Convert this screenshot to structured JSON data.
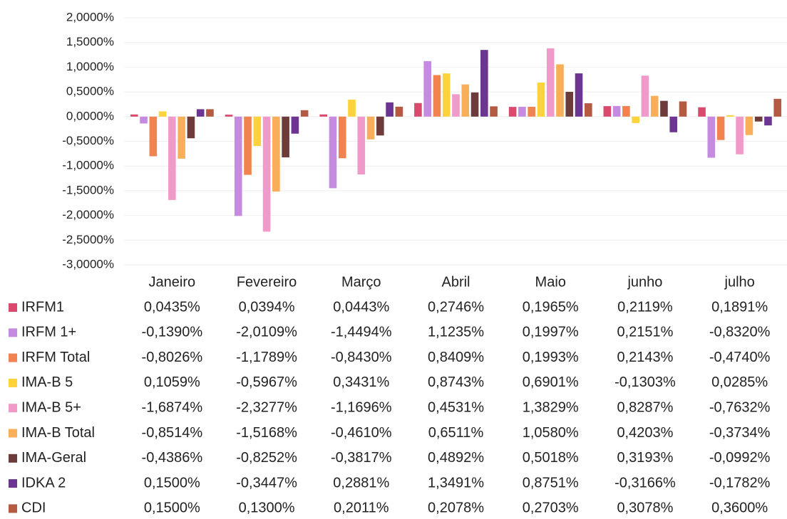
{
  "chart_data": {
    "type": "bar",
    "categories": [
      "Janeiro",
      "Fevereiro",
      "Março",
      "Abril",
      "Maio",
      "junho",
      "julho"
    ],
    "ylim": [
      -3,
      2
    ],
    "yticks": [
      {
        "value": 2,
        "label": "2,0000%"
      },
      {
        "value": 1.5,
        "label": "1,5000%"
      },
      {
        "value": 1,
        "label": "1,0000%"
      },
      {
        "value": 0.5,
        "label": "0,5000%"
      },
      {
        "value": 0,
        "label": "0,0000%"
      },
      {
        "value": -0.5,
        "label": "-0,5000%"
      },
      {
        "value": -1,
        "label": "-1,0000%"
      },
      {
        "value": -1.5,
        "label": "-1,5000%"
      },
      {
        "value": -2,
        "label": "-2,0000%"
      },
      {
        "value": -2.5,
        "label": "-2,5000%"
      },
      {
        "value": -3,
        "label": "-3,0000%"
      }
    ],
    "grid": true,
    "series": [
      {
        "name": "IRFM1",
        "color": "#d94a6e",
        "values": [
          0.0435,
          0.0394,
          0.0443,
          0.2746,
          0.1965,
          0.2119,
          0.1891
        ],
        "value_labels": [
          "0,0435%",
          "0,0394%",
          "0,0443%",
          "0,2746%",
          "0,1965%",
          "0,2119%",
          "0,1891%"
        ]
      },
      {
        "name": "IRFM 1+",
        "color": "#c58be0",
        "values": [
          -0.139,
          -2.0109,
          -1.4494,
          1.1235,
          0.1997,
          0.2151,
          -0.832
        ],
        "value_labels": [
          "-0,1390%",
          "-2,0109%",
          "-1,4494%",
          "1,1235%",
          "0,1997%",
          "0,2151%",
          "-0,8320%"
        ]
      },
      {
        "name": "IRFM Total",
        "color": "#f0834f",
        "values": [
          -0.8026,
          -1.1789,
          -0.843,
          0.8409,
          0.1993,
          0.2143,
          -0.474
        ],
        "value_labels": [
          "-0,8026%",
          "-1,1789%",
          "-0,8430%",
          "0,8409%",
          "0,1993%",
          "0,2143%",
          "-0,4740%"
        ]
      },
      {
        "name": "IMA-B 5",
        "color": "#fdd23a",
        "values": [
          0.1059,
          -0.5967,
          0.3431,
          0.8743,
          0.6901,
          -0.1303,
          0.0285
        ],
        "value_labels": [
          "0,1059%",
          "-0,5967%",
          "0,3431%",
          "0,8743%",
          "0,6901%",
          "-0,1303%",
          "0,0285%"
        ]
      },
      {
        "name": "IMA-B 5+",
        "color": "#f09ac9",
        "values": [
          -1.6874,
          -2.3277,
          -1.1696,
          0.4531,
          1.3829,
          0.8287,
          -0.7632
        ],
        "value_labels": [
          "-1,6874%",
          "-2,3277%",
          "-1,1696%",
          "0,4531%",
          "1,3829%",
          "0,8287%",
          "-0,7632%"
        ]
      },
      {
        "name": "IMA-B Total",
        "color": "#f9ae5a",
        "values": [
          -0.8514,
          -1.5168,
          -0.461,
          0.6511,
          1.058,
          0.4203,
          -0.3734
        ],
        "value_labels": [
          "-0,8514%",
          "-1,5168%",
          "-0,4610%",
          "0,6511%",
          "1,0580%",
          "0,4203%",
          "-0,3734%"
        ]
      },
      {
        "name": "IMA-Geral",
        "color": "#6e3b3b",
        "values": [
          -0.4386,
          -0.8252,
          -0.3817,
          0.4892,
          0.5018,
          0.3193,
          -0.0992
        ],
        "value_labels": [
          "-0,4386%",
          "-0,8252%",
          "-0,3817%",
          "0,4892%",
          "0,5018%",
          "0,3193%",
          "-0,0992%"
        ]
      },
      {
        "name": "IDKA 2",
        "color": "#6b3591",
        "values": [
          0.15,
          -0.3447,
          0.2881,
          1.3491,
          0.8751,
          -0.3166,
          -0.1782
        ],
        "value_labels": [
          "0,1500%",
          "-0,3447%",
          "0,2881%",
          "1,3491%",
          "0,8751%",
          "-0,3166%",
          "-0,1782%"
        ]
      },
      {
        "name": "CDI",
        "color": "#b55a42",
        "values": [
          0.15,
          0.13,
          0.2011,
          0.2078,
          0.2703,
          0.3078,
          0.36
        ],
        "value_labels": [
          "0,1500%",
          "0,1300%",
          "0,2011%",
          "0,2078%",
          "0,2703%",
          "0,3078%",
          "0,3600%"
        ]
      }
    ]
  }
}
